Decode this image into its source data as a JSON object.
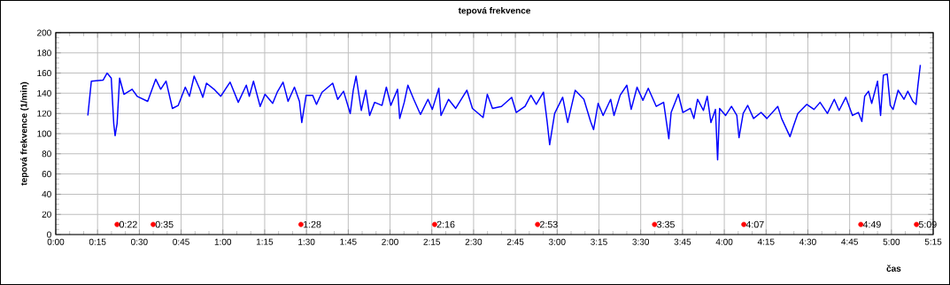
{
  "chart_data": {
    "type": "line",
    "title": "tepová frekvence",
    "xlabel": "čas",
    "ylabel": "tepová frekvence (1/min)",
    "xlim": [
      0,
      5.25
    ],
    "ylim": [
      0,
      200
    ],
    "xticks": [
      {
        "value": 0,
        "label": "0:00"
      },
      {
        "value": 0.25,
        "label": "0:15"
      },
      {
        "value": 0.5,
        "label": "0:30"
      },
      {
        "value": 0.75,
        "label": "0:45"
      },
      {
        "value": 1,
        "label": "1:00"
      },
      {
        "value": 1.25,
        "label": "1:15"
      },
      {
        "value": 1.5,
        "label": "1:30"
      },
      {
        "value": 1.75,
        "label": "1:45"
      },
      {
        "value": 2,
        "label": "2:00"
      },
      {
        "value": 2.25,
        "label": "2:15"
      },
      {
        "value": 2.5,
        "label": "2:30"
      },
      {
        "value": 2.75,
        "label": "2:45"
      },
      {
        "value": 3,
        "label": "3:00"
      },
      {
        "value": 3.25,
        "label": "3:15"
      },
      {
        "value": 3.5,
        "label": "3:30"
      },
      {
        "value": 3.75,
        "label": "3:45"
      },
      {
        "value": 4,
        "label": "4:00"
      },
      {
        "value": 4.25,
        "label": "4:15"
      },
      {
        "value": 4.5,
        "label": "4:30"
      },
      {
        "value": 4.75,
        "label": "4:45"
      },
      {
        "value": 5,
        "label": "5:00"
      },
      {
        "value": 5.25,
        "label": "5:15"
      }
    ],
    "yticks": [
      0,
      20,
      40,
      60,
      80,
      100,
      120,
      140,
      160,
      180,
      200
    ],
    "grid": true,
    "annotations": [
      {
        "text": "0:22",
        "x": 0.367,
        "y": 10
      },
      {
        "text": "0:35",
        "x": 0.583,
        "y": 10
      },
      {
        "text": "1:28",
        "x": 1.467,
        "y": 10
      },
      {
        "text": "2:16",
        "x": 2.267,
        "y": 10
      },
      {
        "text": "2:53",
        "x": 2.883,
        "y": 10
      },
      {
        "text": "3:35",
        "x": 3.583,
        "y": 10
      },
      {
        "text": "4:07",
        "x": 4.117,
        "y": 10
      },
      {
        "text": "4:49",
        "x": 4.817,
        "y": 10
      },
      {
        "text": "5:09",
        "x": 5.15,
        "y": 10
      }
    ],
    "series": [
      {
        "type": "line",
        "color": "#0000ff",
        "marker": "none",
        "line_style": "solid",
        "x": [
          0.192,
          0.213,
          0.283,
          0.307,
          0.332,
          0.347,
          0.355,
          0.367,
          0.382,
          0.408,
          0.457,
          0.487,
          0.55,
          0.598,
          0.628,
          0.66,
          0.698,
          0.733,
          0.775,
          0.8,
          0.828,
          0.862,
          0.88,
          0.902,
          0.947,
          0.987,
          1.043,
          1.092,
          1.14,
          1.158,
          1.183,
          1.223,
          1.252,
          1.298,
          1.325,
          1.36,
          1.39,
          1.428,
          1.458,
          1.472,
          1.498,
          1.537,
          1.56,
          1.593,
          1.657,
          1.687,
          1.722,
          1.762,
          1.78,
          1.797,
          1.828,
          1.855,
          1.878,
          1.908,
          1.952,
          1.978,
          2.005,
          2.045,
          2.058,
          2.085,
          2.107,
          2.142,
          2.182,
          2.227,
          2.253,
          2.292,
          2.305,
          2.35,
          2.393,
          2.46,
          2.493,
          2.557,
          2.582,
          2.613,
          2.667,
          2.728,
          2.755,
          2.808,
          2.843,
          2.875,
          2.918,
          2.94,
          2.955,
          2.985,
          3.033,
          3.063,
          3.108,
          3.16,
          3.2,
          3.218,
          3.245,
          3.275,
          3.32,
          3.34,
          3.377,
          3.417,
          3.443,
          3.478,
          3.513,
          3.545,
          3.593,
          3.637,
          3.668,
          3.682,
          3.725,
          3.752,
          3.797,
          3.818,
          3.84,
          3.875,
          3.898,
          3.92,
          3.947,
          3.96,
          3.972,
          4.008,
          4.043,
          4.075,
          4.088,
          4.113,
          4.14,
          4.175,
          4.22,
          4.255,
          4.32,
          4.343,
          4.393,
          4.413,
          4.44,
          4.493,
          4.537,
          4.573,
          4.617,
          4.658,
          4.687,
          4.727,
          4.767,
          4.802,
          4.823,
          4.84,
          4.863,
          4.882,
          4.917,
          4.935,
          4.952,
          4.975,
          4.993,
          5.01,
          5.04,
          5.075,
          5.098,
          5.128,
          5.147,
          5.158,
          5.173
        ],
        "values": [
          118,
          152,
          153,
          160,
          155,
          110,
          98,
          110,
          155,
          139,
          144,
          137,
          132,
          154,
          144,
          152,
          125,
          128,
          146,
          137,
          157,
          144,
          136,
          150,
          144,
          137,
          151,
          131,
          148,
          137,
          152,
          127,
          139,
          130,
          141,
          151,
          132,
          146,
          132,
          111,
          138,
          138,
          129,
          141,
          150,
          134,
          142,
          120,
          143,
          157,
          123,
          143,
          118,
          131,
          128,
          146,
          128,
          144,
          115,
          131,
          148,
          134,
          119,
          134,
          124,
          145,
          118,
          134,
          125,
          143,
          125,
          116,
          139,
          125,
          127,
          136,
          121,
          127,
          138,
          129,
          141,
          112,
          89,
          120,
          136,
          111,
          143,
          134,
          112,
          104,
          130,
          118,
          134,
          118,
          138,
          148,
          124,
          146,
          133,
          145,
          127,
          131,
          95,
          121,
          139,
          121,
          125,
          115,
          134,
          123,
          137,
          111,
          124,
          74,
          125,
          118,
          127,
          118,
          96,
          120,
          128,
          115,
          121,
          115,
          127,
          115,
          97,
          107,
          120,
          129,
          124,
          131,
          120,
          134,
          123,
          136,
          118,
          121,
          112,
          137,
          142,
          130,
          152,
          118,
          158,
          159,
          128,
          124,
          143,
          134,
          142,
          132,
          129,
          147,
          168
        ]
      },
      {
        "type": "scatter",
        "color": "#ff0000",
        "marker": "circle",
        "x": [
          0.367,
          0.583,
          1.467,
          2.267,
          2.883,
          3.583,
          4.117,
          4.817,
          5.15
        ],
        "values": [
          10,
          10,
          10,
          10,
          10,
          10,
          10,
          10,
          10
        ]
      }
    ]
  }
}
